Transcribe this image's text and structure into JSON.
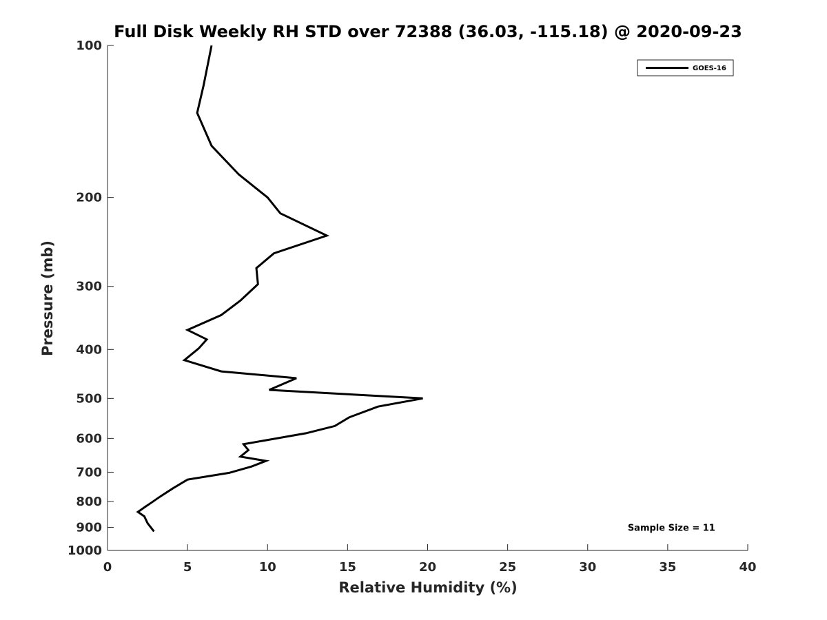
{
  "chart_data": {
    "type": "line",
    "title": "Full Disk Weekly RH STD over 72388 (36.03, -115.18) @ 2020-09-23",
    "xlabel": "Relative Humidity (%)",
    "ylabel": "Pressure (mb)",
    "xlim": [
      0,
      40
    ],
    "ylim": [
      100,
      1000
    ],
    "y_scale": "log",
    "y_reversed": true,
    "grid": false,
    "legend_position": "top-right",
    "x_ticks": [
      0,
      5,
      10,
      15,
      20,
      25,
      30,
      35,
      40
    ],
    "y_ticks": [
      100,
      200,
      300,
      400,
      500,
      600,
      700,
      800,
      900,
      1000
    ],
    "series": [
      {
        "name": "GOES-16",
        "color": "#000000",
        "x": [
          6.5,
          6.0,
          5.6,
          6.5,
          8.2,
          10.0,
          10.8,
          13.7,
          10.4,
          9.3,
          9.4,
          8.3,
          7.1,
          5.0,
          6.2,
          5.7,
          4.8,
          7.1,
          11.8,
          10.1,
          19.7,
          16.9,
          15.1,
          14.2,
          12.4,
          8.5,
          8.8,
          8.3,
          9.9,
          9.0,
          7.6,
          5.0,
          4.1,
          3.3,
          2.7,
          2.4,
          1.9,
          2.3,
          2.5,
          2.9
        ],
        "y": [
          100,
          120,
          136,
          158,
          180,
          200,
          215,
          238,
          258,
          276,
          297,
          320,
          342,
          366,
          382,
          398,
          420,
          442,
          456,
          481,
          500,
          519,
          545,
          567,
          586,
          616,
          633,
          652,
          665,
          682,
          702,
          724,
          753,
          782,
          806,
          818,
          839,
          856,
          883,
          917
        ]
      }
    ],
    "annotations": [
      {
        "text": "Sample Size = 11",
        "x": 32.5,
        "y": 900
      }
    ]
  }
}
